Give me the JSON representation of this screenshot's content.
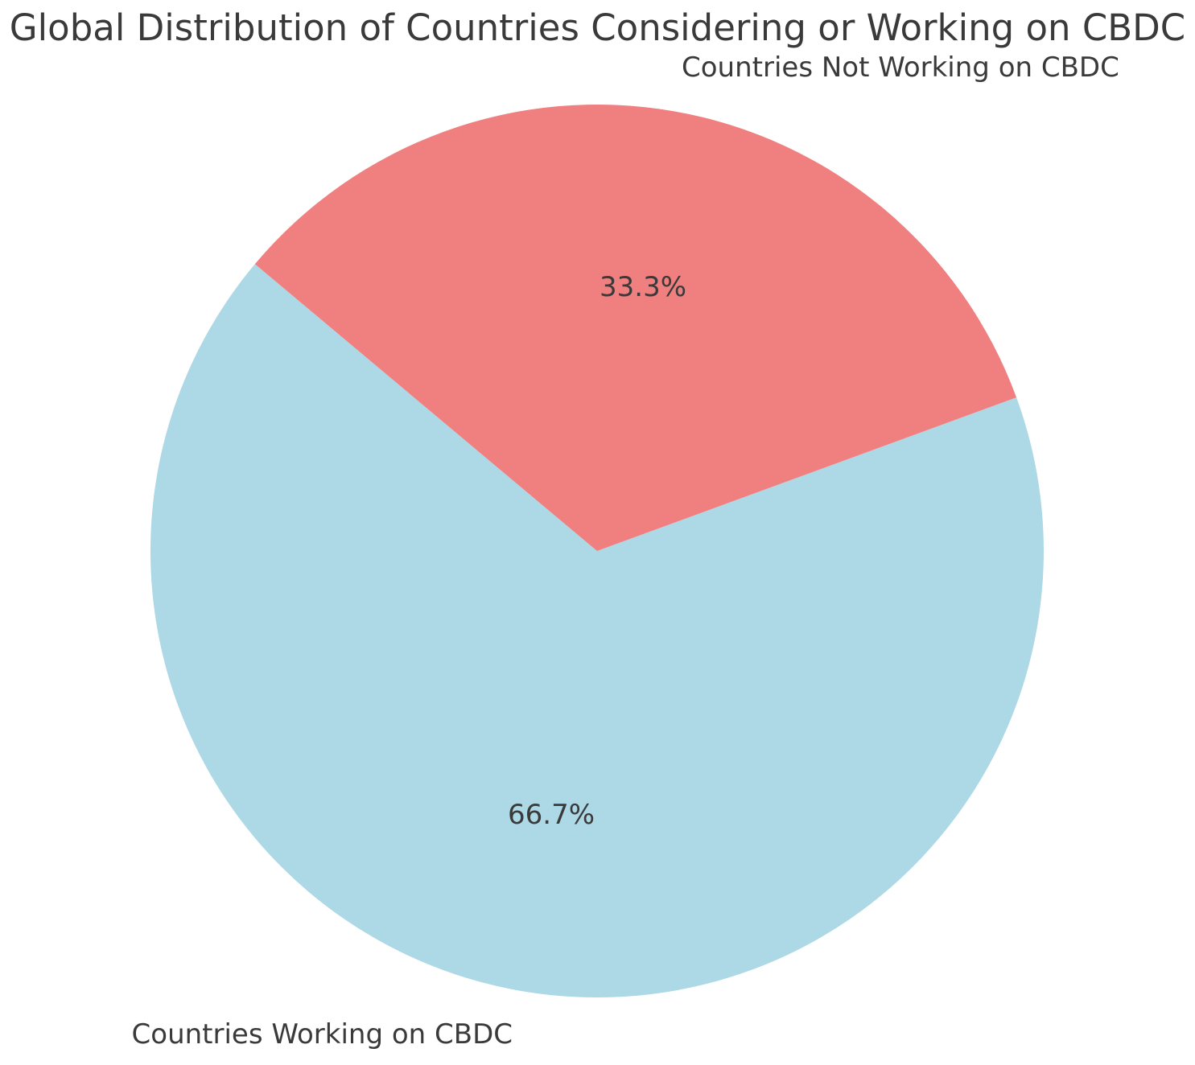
{
  "colors": {
    "background": "#ffffff",
    "text": "#3a3a3a"
  },
  "chart_data": {
    "type": "pie",
    "title": "Global Distribution of Countries Considering or Working on CBDC",
    "slices": [
      {
        "label": "Countries Working on CBDC",
        "value": 66.7,
        "pct_label": "66.7%",
        "color": "#ADD8E6"
      },
      {
        "label": "Countries Not Working on CBDC",
        "value": 33.3,
        "pct_label": "33.3%",
        "color": "#F08080"
      }
    ],
    "start_angle": 140,
    "counterclockwise": true,
    "label_distance": 1.1,
    "pct_distance": 0.6,
    "legend_position": "none",
    "grid": false
  }
}
